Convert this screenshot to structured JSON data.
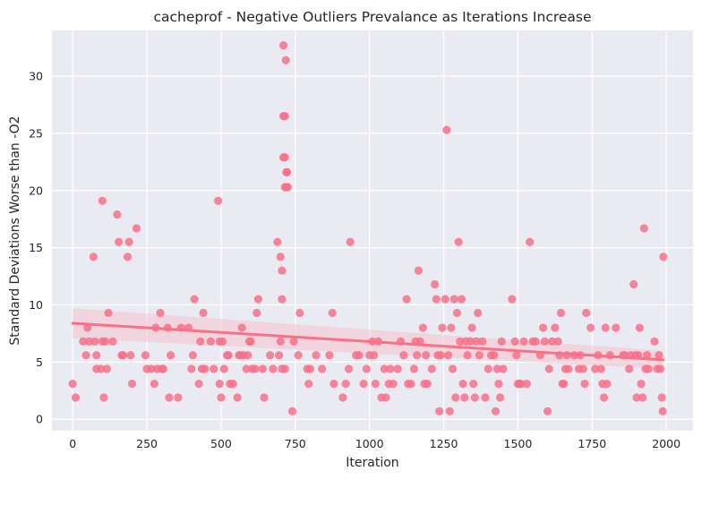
{
  "chart_data": {
    "type": "scatter",
    "title": "cacheprof - Negative Outliers Prevalance as Iterations Increase",
    "xlabel": "Iteration",
    "ylabel": "Standard Deviations Worse than -O2",
    "xlim": [
      -70,
      2090
    ],
    "ylim": [
      -1.0,
      34.0
    ],
    "xticks": [
      0,
      250,
      500,
      750,
      1000,
      1250,
      1500,
      1750,
      2000
    ],
    "yticks": [
      0,
      5,
      10,
      15,
      20,
      25,
      30
    ],
    "grid": true,
    "style": "seaborn-darkgrid",
    "colors": {
      "background": "#EAEAF2",
      "grid": "#FFFFFF",
      "points": "#F77189",
      "regression_line": "#F77189",
      "confidence_band": "#F4C6D0"
    },
    "regression": {
      "x": [
        0,
        1990
      ],
      "y": [
        8.4,
        5.2
      ],
      "ci_upper": [
        9.7,
        6.0
      ],
      "ci_lower": [
        7.1,
        4.4
      ]
    },
    "points": [
      [
        0,
        3.1
      ],
      [
        10,
        1.9
      ],
      [
        35,
        6.8
      ],
      [
        45,
        5.6
      ],
      [
        50,
        8.0
      ],
      [
        55,
        6.8
      ],
      [
        70,
        14.2
      ],
      [
        75,
        6.8
      ],
      [
        80,
        5.6
      ],
      [
        80,
        4.4
      ],
      [
        95,
        4.4
      ],
      [
        100,
        6.8
      ],
      [
        100,
        19.1
      ],
      [
        105,
        1.9
      ],
      [
        110,
        6.8
      ],
      [
        115,
        4.4
      ],
      [
        120,
        9.3
      ],
      [
        135,
        6.8
      ],
      [
        150,
        17.9
      ],
      [
        155,
        15.5
      ],
      [
        165,
        5.6
      ],
      [
        170,
        5.6
      ],
      [
        185,
        14.2
      ],
      [
        190,
        15.5
      ],
      [
        195,
        5.6
      ],
      [
        200,
        3.1
      ],
      [
        215,
        16.7
      ],
      [
        245,
        5.6
      ],
      [
        250,
        4.4
      ],
      [
        265,
        4.4
      ],
      [
        275,
        3.1
      ],
      [
        280,
        8.0
      ],
      [
        285,
        4.4
      ],
      [
        295,
        9.3
      ],
      [
        300,
        4.4
      ],
      [
        305,
        4.4
      ],
      [
        320,
        8.0
      ],
      [
        325,
        1.9
      ],
      [
        330,
        5.6
      ],
      [
        355,
        1.9
      ],
      [
        365,
        8.0
      ],
      [
        390,
        8.0
      ],
      [
        400,
        4.4
      ],
      [
        405,
        5.6
      ],
      [
        410,
        10.5
      ],
      [
        425,
        3.1
      ],
      [
        430,
        6.8
      ],
      [
        435,
        4.4
      ],
      [
        440,
        9.3
      ],
      [
        445,
        4.4
      ],
      [
        465,
        6.8
      ],
      [
        475,
        4.4
      ],
      [
        490,
        19.1
      ],
      [
        495,
        6.8
      ],
      [
        495,
        3.1
      ],
      [
        500,
        1.9
      ],
      [
        505,
        6.8
      ],
      [
        510,
        4.4
      ],
      [
        520,
        5.6
      ],
      [
        525,
        5.6
      ],
      [
        530,
        3.1
      ],
      [
        540,
        3.1
      ],
      [
        555,
        1.9
      ],
      [
        560,
        5.6
      ],
      [
        565,
        5.6
      ],
      [
        570,
        8.0
      ],
      [
        575,
        5.6
      ],
      [
        585,
        4.4
      ],
      [
        590,
        5.6
      ],
      [
        595,
        6.8
      ],
      [
        600,
        6.8
      ],
      [
        605,
        4.4
      ],
      [
        615,
        4.4
      ],
      [
        620,
        9.3
      ],
      [
        625,
        10.5
      ],
      [
        640,
        4.4
      ],
      [
        645,
        1.9
      ],
      [
        665,
        5.6
      ],
      [
        675,
        4.4
      ],
      [
        690,
        15.5
      ],
      [
        695,
        5.6
      ],
      [
        700,
        14.2
      ],
      [
        700,
        6.8
      ],
      [
        705,
        13.0
      ],
      [
        705,
        10.5
      ],
      [
        705,
        4.4
      ],
      [
        710,
        22.9
      ],
      [
        710,
        26.5
      ],
      [
        710,
        32.7
      ],
      [
        715,
        4.4
      ],
      [
        715,
        20.3
      ],
      [
        715,
        22.9
      ],
      [
        715,
        26.5
      ],
      [
        718,
        31.4
      ],
      [
        720,
        21.6
      ],
      [
        720,
        20.3
      ],
      [
        722,
        21.6
      ],
      [
        725,
        20.3
      ],
      [
        740,
        0.7
      ],
      [
        745,
        6.8
      ],
      [
        760,
        5.6
      ],
      [
        765,
        9.3
      ],
      [
        790,
        4.4
      ],
      [
        795,
        3.1
      ],
      [
        800,
        4.4
      ],
      [
        820,
        5.6
      ],
      [
        840,
        4.4
      ],
      [
        865,
        5.6
      ],
      [
        875,
        9.3
      ],
      [
        880,
        3.1
      ],
      [
        910,
        1.9
      ],
      [
        920,
        3.1
      ],
      [
        930,
        4.4
      ],
      [
        935,
        15.5
      ],
      [
        955,
        5.6
      ],
      [
        965,
        5.6
      ],
      [
        980,
        3.1
      ],
      [
        990,
        4.4
      ],
      [
        1000,
        5.6
      ],
      [
        1010,
        6.8
      ],
      [
        1015,
        5.6
      ],
      [
        1020,
        3.1
      ],
      [
        1030,
        6.8
      ],
      [
        1040,
        1.9
      ],
      [
        1050,
        4.4
      ],
      [
        1055,
        1.9
      ],
      [
        1065,
        3.1
      ],
      [
        1070,
        4.4
      ],
      [
        1080,
        3.1
      ],
      [
        1095,
        4.4
      ],
      [
        1105,
        6.8
      ],
      [
        1115,
        5.6
      ],
      [
        1125,
        10.5
      ],
      [
        1130,
        3.1
      ],
      [
        1140,
        3.1
      ],
      [
        1150,
        4.4
      ],
      [
        1155,
        6.8
      ],
      [
        1160,
        5.6
      ],
      [
        1165,
        13.0
      ],
      [
        1170,
        6.8
      ],
      [
        1180,
        8.0
      ],
      [
        1185,
        3.1
      ],
      [
        1190,
        5.6
      ],
      [
        1195,
        3.1
      ],
      [
        1210,
        4.4
      ],
      [
        1220,
        11.8
      ],
      [
        1225,
        10.5
      ],
      [
        1230,
        5.6
      ],
      [
        1235,
        0.7
      ],
      [
        1240,
        5.6
      ],
      [
        1245,
        8.0
      ],
      [
        1255,
        10.5
      ],
      [
        1260,
        25.3
      ],
      [
        1265,
        5.6
      ],
      [
        1270,
        0.7
      ],
      [
        1275,
        8.0
      ],
      [
        1280,
        4.4
      ],
      [
        1285,
        10.5
      ],
      [
        1290,
        1.9
      ],
      [
        1295,
        9.3
      ],
      [
        1300,
        15.5
      ],
      [
        1305,
        6.8
      ],
      [
        1310,
        10.5
      ],
      [
        1315,
        3.1
      ],
      [
        1320,
        1.9
      ],
      [
        1325,
        6.8
      ],
      [
        1330,
        5.6
      ],
      [
        1340,
        6.8
      ],
      [
        1345,
        8.0
      ],
      [
        1350,
        3.1
      ],
      [
        1355,
        1.9
      ],
      [
        1360,
        6.8
      ],
      [
        1365,
        9.3
      ],
      [
        1370,
        5.6
      ],
      [
        1380,
        6.8
      ],
      [
        1390,
        1.9
      ],
      [
        1400,
        4.4
      ],
      [
        1410,
        5.6
      ],
      [
        1420,
        5.6
      ],
      [
        1425,
        0.7
      ],
      [
        1430,
        4.4
      ],
      [
        1435,
        3.1
      ],
      [
        1440,
        1.9
      ],
      [
        1445,
        6.8
      ],
      [
        1450,
        4.4
      ],
      [
        1480,
        10.5
      ],
      [
        1490,
        6.8
      ],
      [
        1495,
        5.6
      ],
      [
        1500,
        3.1
      ],
      [
        1505,
        3.1
      ],
      [
        1510,
        3.1
      ],
      [
        1520,
        6.8
      ],
      [
        1530,
        3.1
      ],
      [
        1540,
        15.5
      ],
      [
        1550,
        6.8
      ],
      [
        1560,
        6.8
      ],
      [
        1575,
        5.6
      ],
      [
        1585,
        8.0
      ],
      [
        1590,
        6.8
      ],
      [
        1600,
        0.7
      ],
      [
        1605,
        4.4
      ],
      [
        1615,
        6.8
      ],
      [
        1625,
        8.0
      ],
      [
        1635,
        6.8
      ],
      [
        1640,
        5.6
      ],
      [
        1645,
        9.3
      ],
      [
        1650,
        3.1
      ],
      [
        1655,
        3.1
      ],
      [
        1660,
        4.4
      ],
      [
        1665,
        5.6
      ],
      [
        1670,
        4.4
      ],
      [
        1690,
        5.6
      ],
      [
        1705,
        4.4
      ],
      [
        1710,
        5.6
      ],
      [
        1720,
        4.4
      ],
      [
        1725,
        3.1
      ],
      [
        1730,
        9.3
      ],
      [
        1745,
        8.0
      ],
      [
        1760,
        4.4
      ],
      [
        1770,
        5.6
      ],
      [
        1780,
        4.4
      ],
      [
        1785,
        3.1
      ],
      [
        1790,
        1.9
      ],
      [
        1795,
        8.0
      ],
      [
        1800,
        3.1
      ],
      [
        1810,
        5.6
      ],
      [
        1830,
        8.0
      ],
      [
        1855,
        5.6
      ],
      [
        1860,
        5.6
      ],
      [
        1875,
        4.4
      ],
      [
        1880,
        5.6
      ],
      [
        1890,
        11.8
      ],
      [
        1895,
        5.6
      ],
      [
        1900,
        1.9
      ],
      [
        1905,
        5.6
      ],
      [
        1910,
        8.0
      ],
      [
        1915,
        3.1
      ],
      [
        1920,
        1.9
      ],
      [
        1925,
        16.7
      ],
      [
        1930,
        4.4
      ],
      [
        1935,
        5.6
      ],
      [
        1940,
        4.4
      ],
      [
        1960,
        6.8
      ],
      [
        1970,
        4.4
      ],
      [
        1975,
        5.6
      ],
      [
        1980,
        4.4
      ],
      [
        1985,
        1.9
      ],
      [
        1988,
        0.7
      ],
      [
        1990,
        14.2
      ]
    ]
  }
}
